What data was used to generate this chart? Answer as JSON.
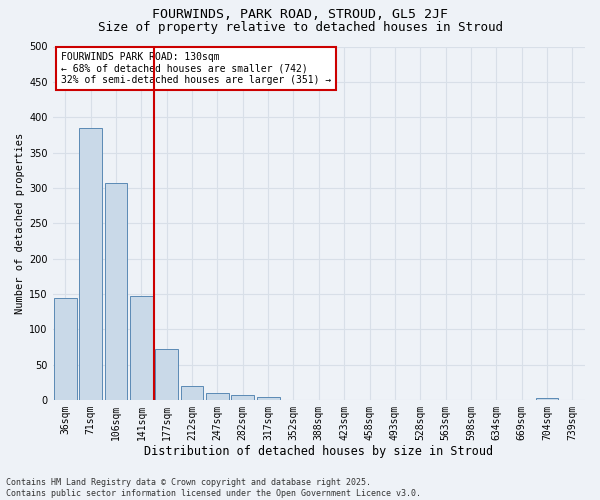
{
  "title1": "FOURWINDS, PARK ROAD, STROUD, GL5 2JF",
  "title2": "Size of property relative to detached houses in Stroud",
  "xlabel": "Distribution of detached houses by size in Stroud",
  "ylabel": "Number of detached properties",
  "categories": [
    "36sqm",
    "71sqm",
    "106sqm",
    "141sqm",
    "177sqm",
    "212sqm",
    "247sqm",
    "282sqm",
    "317sqm",
    "352sqm",
    "388sqm",
    "423sqm",
    "458sqm",
    "493sqm",
    "528sqm",
    "563sqm",
    "598sqm",
    "634sqm",
    "669sqm",
    "704sqm",
    "739sqm"
  ],
  "values": [
    144,
    385,
    307,
    148,
    72,
    20,
    10,
    8,
    4,
    0,
    0,
    0,
    0,
    0,
    0,
    0,
    0,
    0,
    0,
    3,
    0
  ],
  "bar_color": "#c9d9e8",
  "bar_edge_color": "#5a8ab5",
  "vline_color": "#cc0000",
  "vline_x": 3.5,
  "ylim": [
    0,
    500
  ],
  "yticks": [
    0,
    50,
    100,
    150,
    200,
    250,
    300,
    350,
    400,
    450,
    500
  ],
  "annotation_title": "FOURWINDS PARK ROAD: 130sqm",
  "annotation_line1": "← 68% of detached houses are smaller (742)",
  "annotation_line2": "32% of semi-detached houses are larger (351) →",
  "annotation_box_color": "#cc0000",
  "background_color": "#eef2f7",
  "grid_color": "#d8dfe8",
  "footer": "Contains HM Land Registry data © Crown copyright and database right 2025.\nContains public sector information licensed under the Open Government Licence v3.0.",
  "title1_fontsize": 9.5,
  "title2_fontsize": 9,
  "xlabel_fontsize": 8.5,
  "ylabel_fontsize": 7.5,
  "tick_fontsize": 7,
  "annotation_fontsize": 7,
  "footer_fontsize": 6
}
